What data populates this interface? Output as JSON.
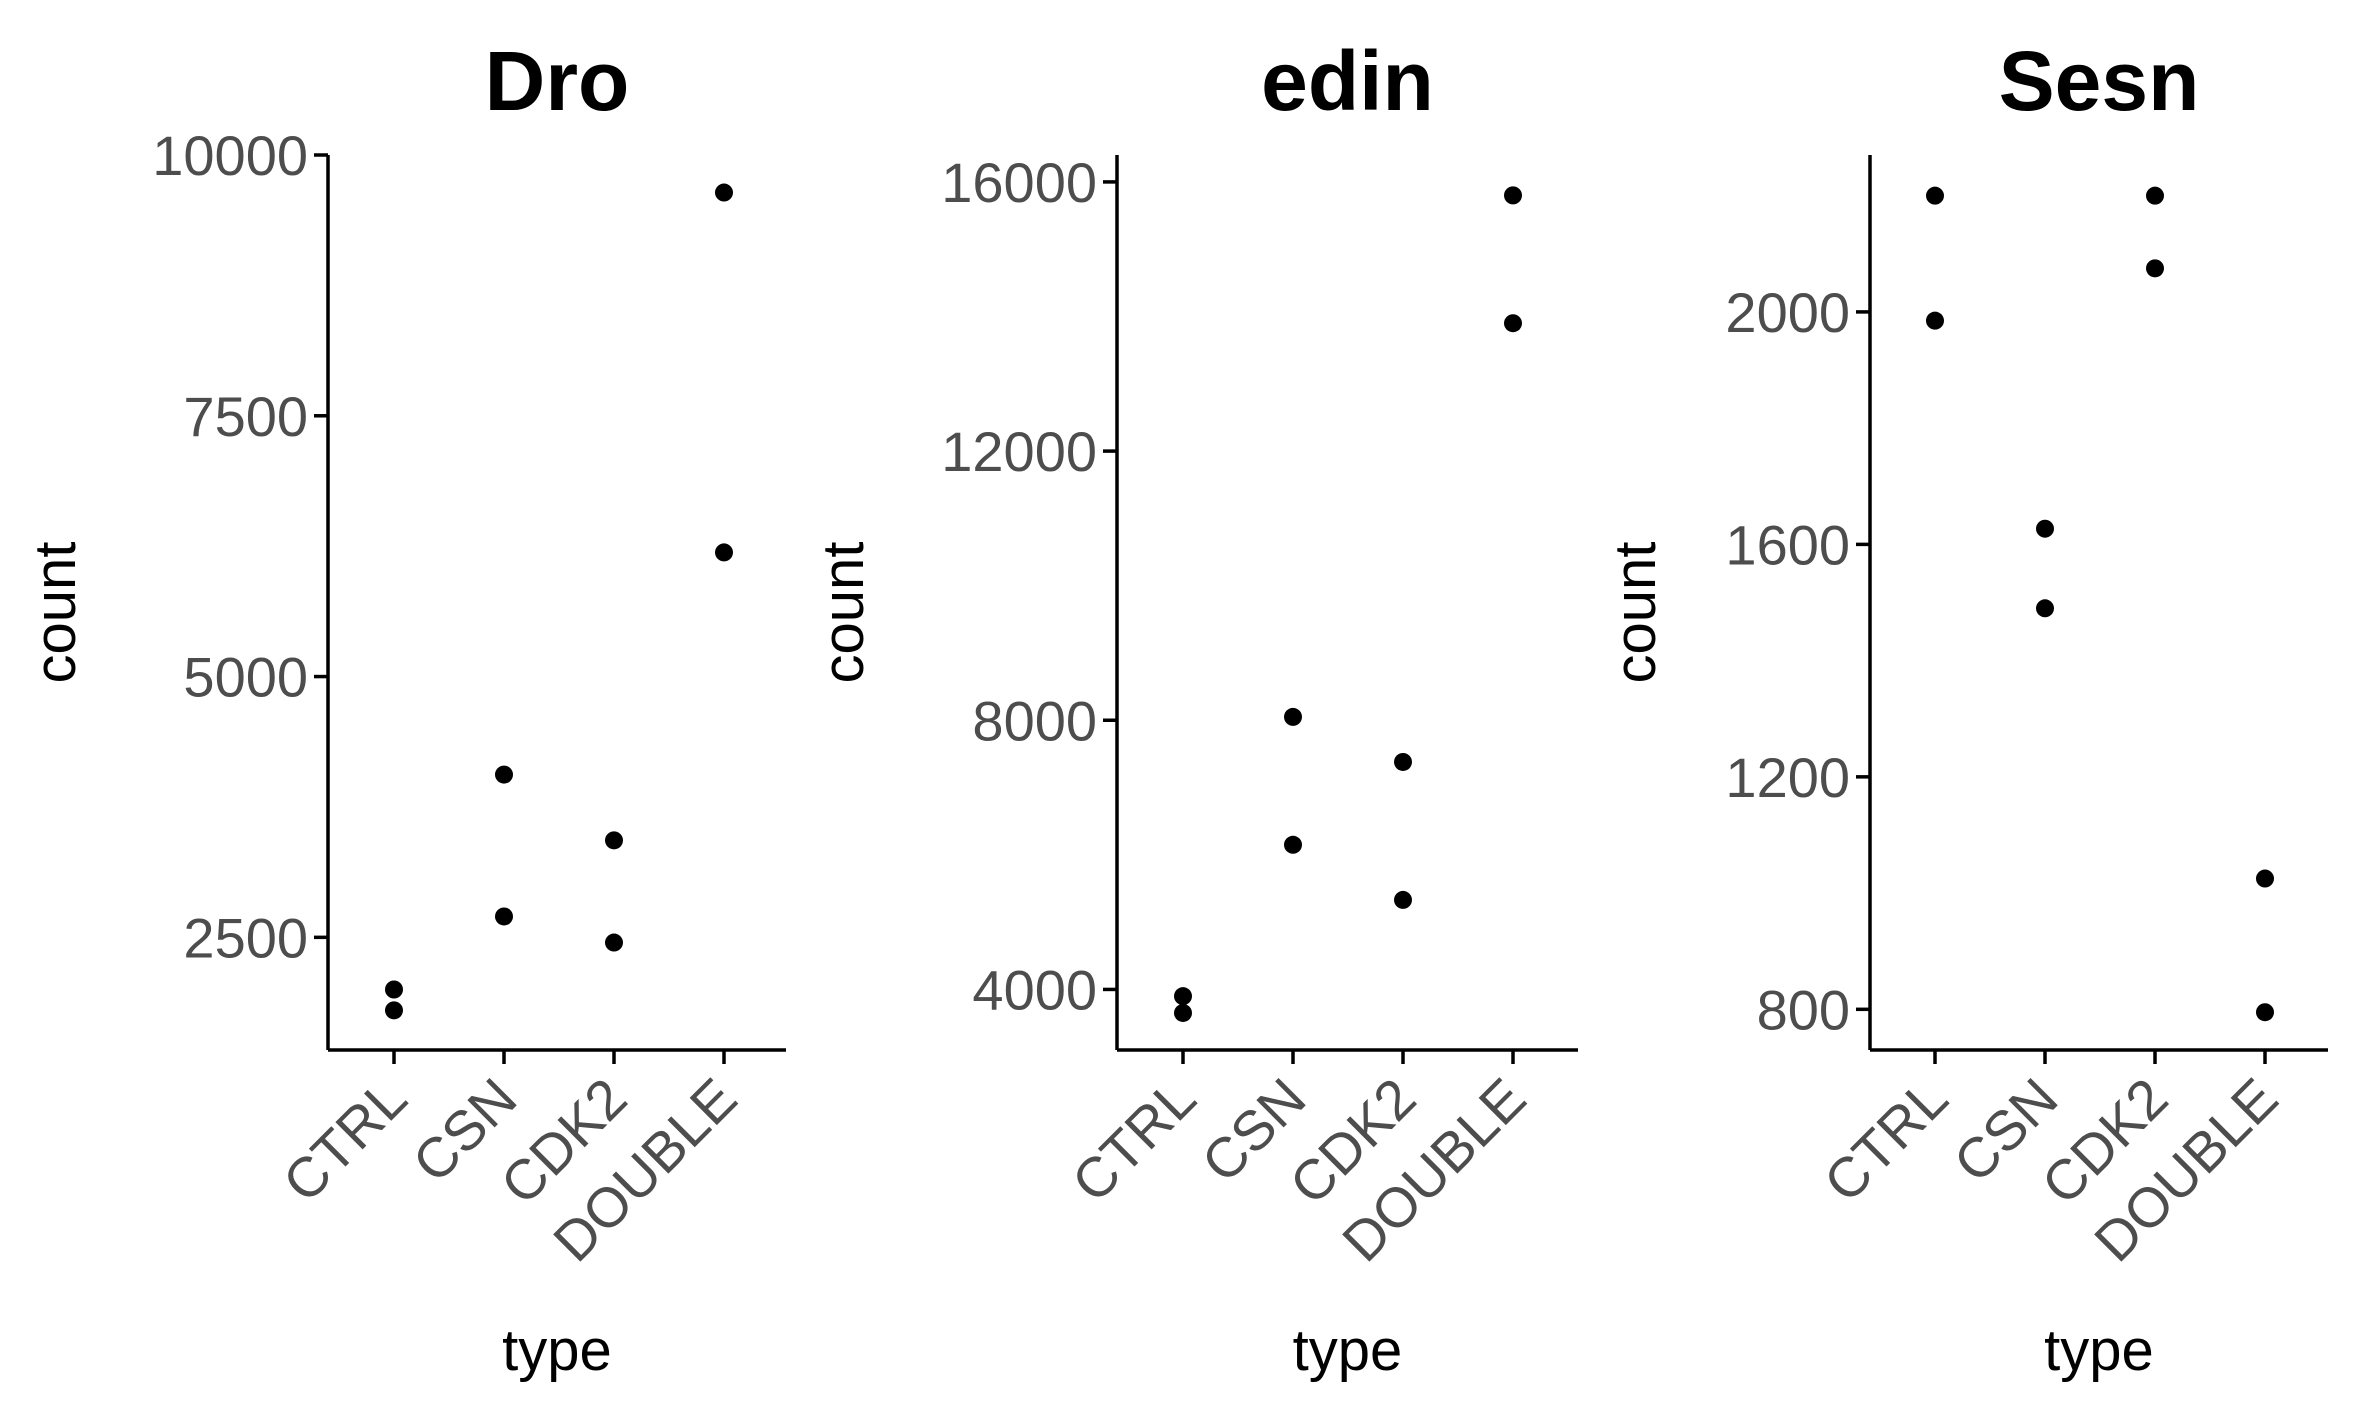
{
  "chart_data": [
    {
      "type": "scatter",
      "title": "Dro",
      "xlabel": "type",
      "ylabel": "count",
      "categories": [
        "CTRL",
        "CSN",
        "CDK2",
        "DOUBLE"
      ],
      "yticks": [
        2500,
        5000,
        7500,
        10000
      ],
      "ytick_labels": [
        "2500",
        "5000",
        "7500",
        "10000"
      ],
      "ylim": [
        1420,
        10000
      ],
      "grid": false,
      "points": [
        {
          "x": "CTRL",
          "y": 2000
        },
        {
          "x": "CTRL",
          "y": 1800
        },
        {
          "x": "CSN",
          "y": 4060
        },
        {
          "x": "CSN",
          "y": 2700
        },
        {
          "x": "CDK2",
          "y": 3430
        },
        {
          "x": "CDK2",
          "y": 2450
        },
        {
          "x": "DOUBLE",
          "y": 9640
        },
        {
          "x": "DOUBLE",
          "y": 6190
        }
      ]
    },
    {
      "type": "scatter",
      "title": "edin",
      "xlabel": "type",
      "ylabel": "count",
      "categories": [
        "CTRL",
        "CSN",
        "CDK2",
        "DOUBLE"
      ],
      "yticks": [
        4000,
        8000,
        12000,
        16000
      ],
      "ytick_labels": [
        "4000",
        "8000",
        "12000",
        "16000"
      ],
      "ylim": [
        3100,
        16400
      ],
      "grid": false,
      "points": [
        {
          "x": "CTRL",
          "y": 3900
        },
        {
          "x": "CTRL",
          "y": 3650
        },
        {
          "x": "CSN",
          "y": 8050
        },
        {
          "x": "CSN",
          "y": 6150
        },
        {
          "x": "CDK2",
          "y": 7380
        },
        {
          "x": "CDK2",
          "y": 5330
        },
        {
          "x": "DOUBLE",
          "y": 15800
        },
        {
          "x": "DOUBLE",
          "y": 13900
        }
      ]
    },
    {
      "type": "scatter",
      "title": "Sesn",
      "xlabel": "type",
      "ylabel": "count",
      "categories": [
        "CTRL",
        "CSN",
        "CDK2",
        "DOUBLE"
      ],
      "yticks": [
        800,
        1200,
        1600,
        2000
      ],
      "ytick_labels": [
        "800",
        "1200",
        "1600",
        "2000"
      ],
      "ylim": [
        730,
        2270
      ],
      "grid": false,
      "points": [
        {
          "x": "CTRL",
          "y": 2200
        },
        {
          "x": "CTRL",
          "y": 1985
        },
        {
          "x": "CSN",
          "y": 1627
        },
        {
          "x": "CSN",
          "y": 1490
        },
        {
          "x": "CDK2",
          "y": 2200
        },
        {
          "x": "CDK2",
          "y": 2075
        },
        {
          "x": "DOUBLE",
          "y": 1025
        },
        {
          "x": "DOUBLE",
          "y": 795
        }
      ]
    }
  ]
}
